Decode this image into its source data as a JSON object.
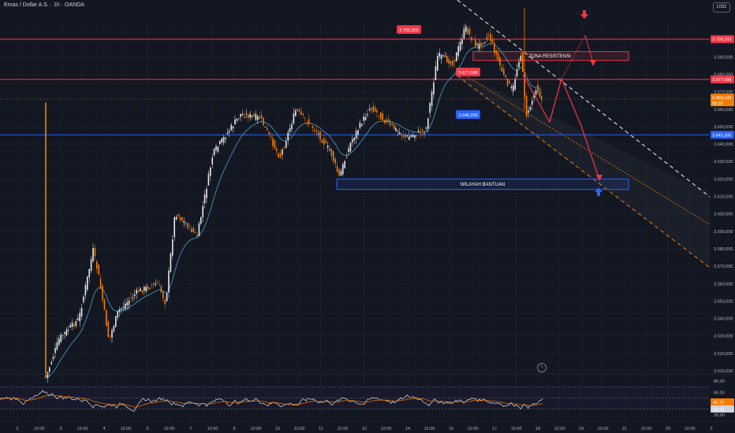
{
  "header": {
    "symbol_title": "Emas / Dollar A.S. · 1h · OANDA",
    "currency": "USD"
  },
  "chart_data": {
    "type": "candlestick",
    "price_axis": {
      "ylim": [
        3510,
        3710
      ],
      "ticks": [
        "3.700,000",
        "3.690,000",
        "3.680,000",
        "3.670,000",
        "3.660,000",
        "3.650,000",
        "3.640,000",
        "3.630,000",
        "3.620,000",
        "3.610,000",
        "3.600,000",
        "3.590,000",
        "3.580,000",
        "3.570,000",
        "3.560,000",
        "3.550,000",
        "3.540,000",
        "3.530,000",
        "3.520,000",
        "3.510,000"
      ]
    },
    "time_axis": {
      "labels": [
        "2",
        "12:00",
        "3",
        "12:00",
        "4",
        "12:00",
        "5",
        "12:00",
        "7",
        "12:00",
        "9",
        "12:00",
        "10",
        "12:00",
        "11",
        "12:00",
        "12",
        "12:00",
        "14",
        "12:00",
        "16",
        "12:00",
        "17",
        "12:00",
        "18",
        "12:00",
        "19",
        "12:00",
        "21",
        "12:00",
        "23",
        "12:00",
        "2"
      ]
    },
    "levels": [
      {
        "name": "resistance-top",
        "price": 3700.203,
        "label": "3.700,203",
        "color": "#f23645"
      },
      {
        "name": "resistance-mid",
        "price": 3677.088,
        "label": "3.677,088",
        "color": "#f23645"
      },
      {
        "name": "support-line",
        "price": 3645.305,
        "label": "3.645,305",
        "color": "#2962ff"
      }
    ],
    "current_price": {
      "label": "3.658,100",
      "sub": "55:59",
      "color": "#f57c00"
    },
    "zones": [
      {
        "label": "ZONA RESISTENSI",
        "top": 3693,
        "bottom": 3688,
        "color": "#f23645"
      },
      {
        "label": "WILAYAH BANTUAN",
        "top": 3620,
        "bottom": 3614,
        "color": "#2962ff"
      }
    ],
    "rsi": {
      "ticks": [
        "80,00",
        "60,00",
        "40,00",
        "20,00"
      ],
      "value_labels": [
        "45,72",
        "42,02"
      ]
    }
  }
}
